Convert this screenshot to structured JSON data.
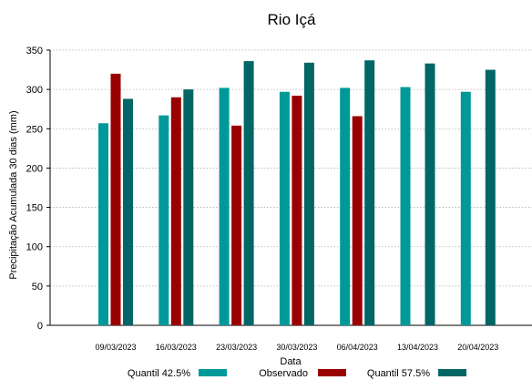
{
  "chart_data": {
    "type": "bar",
    "title": "Rio Içá",
    "xlabel": "Data",
    "ylabel": "Precipitação Acumulada 30 dias (mm)",
    "ylim": [
      0,
      350
    ],
    "yticks": [
      0,
      50,
      100,
      150,
      200,
      250,
      300,
      350
    ],
    "grid": true,
    "legend_position": "bottom",
    "categories": [
      "09/03/2023",
      "16/03/2023",
      "23/03/2023",
      "30/03/2023",
      "06/04/2023",
      "13/04/2023",
      "20/04/2023"
    ],
    "series": [
      {
        "name": "Quantil 42.5%",
        "color": "#009999",
        "values": [
          257,
          267,
          302,
          297,
          302,
          303,
          297
        ]
      },
      {
        "name": "Observado",
        "color": "#990000",
        "values": [
          320,
          290,
          254,
          292,
          266,
          null,
          null
        ]
      },
      {
        "name": "Quantil 57.5%",
        "color": "#006666",
        "values": [
          288,
          300,
          336,
          334,
          337,
          333,
          325
        ]
      }
    ]
  }
}
